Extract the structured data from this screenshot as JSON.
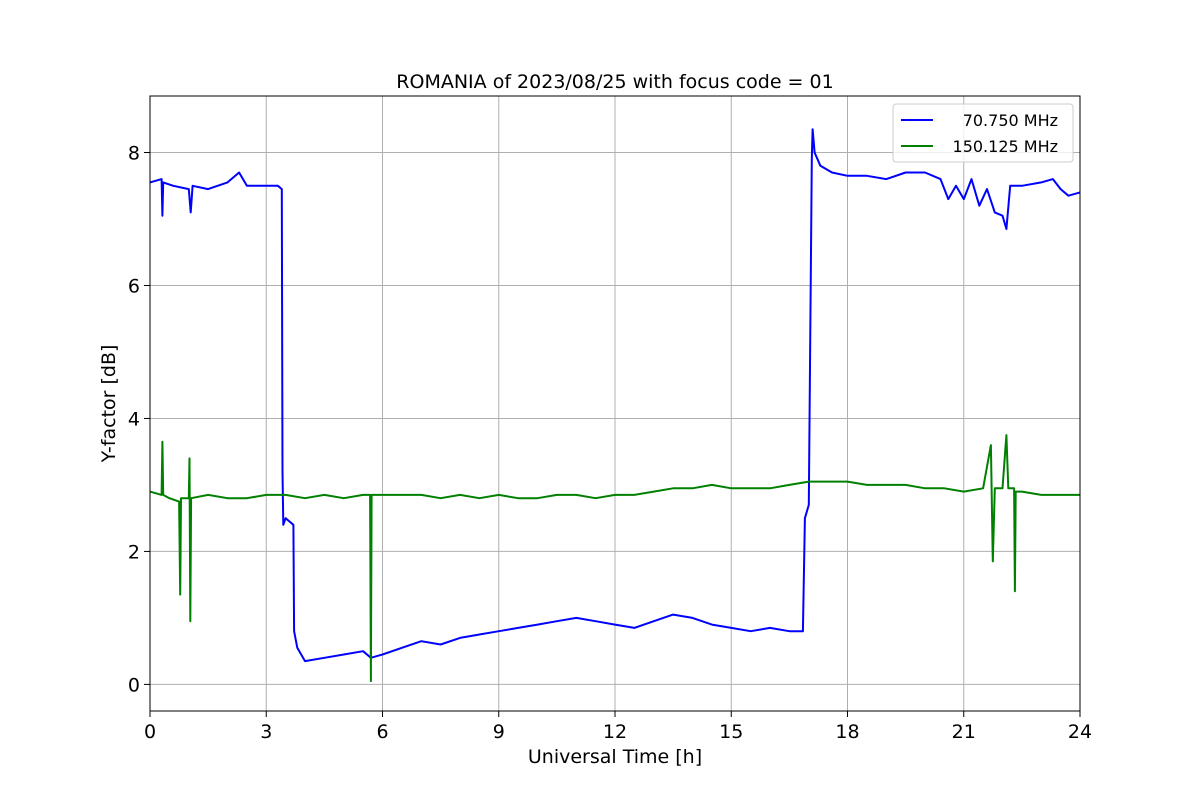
{
  "chart_data": {
    "type": "line",
    "title": "ROMANIA of 2023/08/25 with focus code = 01",
    "xlabel": "Universal Time [h]",
    "ylabel": "Y-factor [dB]",
    "xlim": [
      0,
      24
    ],
    "ylim": [
      -0.4,
      8.85
    ],
    "xticks": [
      0,
      3,
      6,
      9,
      12,
      15,
      18,
      21,
      24
    ],
    "xtick_labels": [
      "0",
      "3",
      "6",
      "9",
      "12",
      "15",
      "18",
      "21",
      "24"
    ],
    "yticks": [
      0,
      2,
      4,
      6,
      8
    ],
    "ytick_labels": [
      "0",
      "2",
      "4",
      "6",
      "8"
    ],
    "grid": true,
    "legend_position": "top-right",
    "series": [
      {
        "name": "70.750 MHz",
        "color": "#0000ff",
        "x": [
          0,
          0.3,
          0.32,
          0.34,
          0.6,
          1.0,
          1.05,
          1.1,
          1.5,
          2.0,
          2.3,
          2.5,
          3.0,
          3.3,
          3.4,
          3.42,
          3.44,
          3.5,
          3.6,
          3.7,
          3.72,
          3.8,
          4.0,
          4.5,
          5.0,
          5.5,
          5.7,
          6.0,
          6.5,
          7.0,
          7.5,
          8.0,
          8.5,
          9.0,
          9.5,
          10.0,
          10.5,
          11.0,
          11.5,
          12.0,
          12.5,
          13.0,
          13.5,
          14.0,
          14.5,
          15.0,
          15.5,
          16.0,
          16.5,
          16.85,
          16.9,
          17.0,
          17.08,
          17.1,
          17.15,
          17.3,
          17.6,
          18.0,
          18.5,
          19.0,
          19.5,
          20.0,
          20.4,
          20.6,
          20.8,
          21.0,
          21.2,
          21.4,
          21.6,
          21.8,
          22.0,
          22.1,
          22.2,
          22.5,
          23.0,
          23.3,
          23.5,
          23.7,
          24.0
        ],
        "values": [
          7.55,
          7.6,
          7.05,
          7.55,
          7.5,
          7.45,
          7.1,
          7.5,
          7.45,
          7.55,
          7.7,
          7.5,
          7.5,
          7.5,
          7.45,
          3.2,
          2.4,
          2.5,
          2.45,
          2.4,
          0.8,
          0.55,
          0.35,
          0.4,
          0.45,
          0.5,
          0.4,
          0.45,
          0.55,
          0.65,
          0.6,
          0.7,
          0.75,
          0.8,
          0.85,
          0.9,
          0.95,
          1.0,
          0.95,
          0.9,
          0.85,
          0.95,
          1.05,
          1.0,
          0.9,
          0.85,
          0.8,
          0.85,
          0.8,
          0.8,
          2.5,
          2.7,
          7.9,
          8.35,
          8.0,
          7.8,
          7.7,
          7.65,
          7.65,
          7.6,
          7.7,
          7.7,
          7.6,
          7.3,
          7.5,
          7.3,
          7.6,
          7.2,
          7.45,
          7.1,
          7.05,
          6.85,
          7.5,
          7.5,
          7.55,
          7.6,
          7.45,
          7.35,
          7.4
        ]
      },
      {
        "name": "150.125 MHz",
        "color": "#008000",
        "x": [
          0,
          0.3,
          0.32,
          0.34,
          0.5,
          0.75,
          0.78,
          0.8,
          1.0,
          1.02,
          1.04,
          1.06,
          1.5,
          2.0,
          2.5,
          3.0,
          3.5,
          4.0,
          4.5,
          5.0,
          5.5,
          5.68,
          5.7,
          5.72,
          6.0,
          6.5,
          7.0,
          7.5,
          8.0,
          8.5,
          9.0,
          9.5,
          10.0,
          10.5,
          11.0,
          11.5,
          12.0,
          12.5,
          13.0,
          13.5,
          14.0,
          14.5,
          15.0,
          15.5,
          16.0,
          16.5,
          17.0,
          17.5,
          18.0,
          18.5,
          19.0,
          19.5,
          20.0,
          20.5,
          21.0,
          21.5,
          21.7,
          21.75,
          21.8,
          22.0,
          22.1,
          22.15,
          22.3,
          22.32,
          22.34,
          22.5,
          23.0,
          23.5,
          24.0
        ],
        "values": [
          2.9,
          2.85,
          3.65,
          2.85,
          2.8,
          2.75,
          1.35,
          2.8,
          2.8,
          3.4,
          0.95,
          2.8,
          2.85,
          2.8,
          2.8,
          2.85,
          2.85,
          2.8,
          2.85,
          2.8,
          2.85,
          2.85,
          0.05,
          2.85,
          2.85,
          2.85,
          2.85,
          2.8,
          2.85,
          2.8,
          2.85,
          2.8,
          2.8,
          2.85,
          2.85,
          2.8,
          2.85,
          2.85,
          2.9,
          2.95,
          2.95,
          3.0,
          2.95,
          2.95,
          2.95,
          3.0,
          3.05,
          3.05,
          3.05,
          3.0,
          3.0,
          3.0,
          2.95,
          2.95,
          2.9,
          2.95,
          3.6,
          1.85,
          2.95,
          2.95,
          3.75,
          2.95,
          2.95,
          1.4,
          2.9,
          2.9,
          2.85,
          2.85,
          2.85
        ]
      }
    ]
  }
}
